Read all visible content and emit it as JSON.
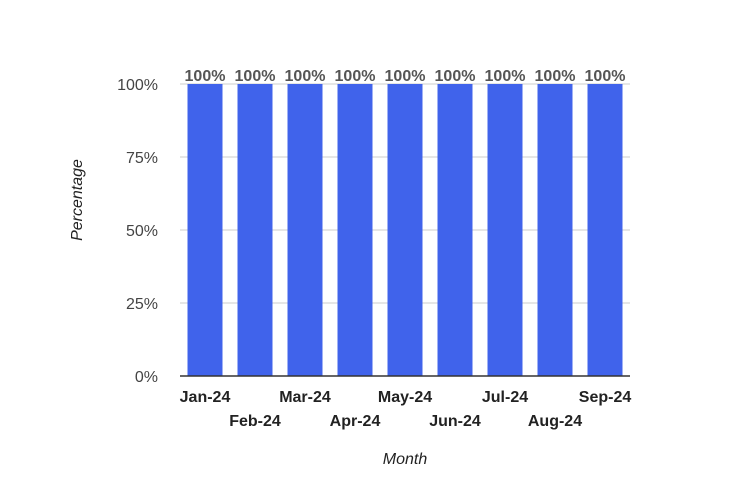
{
  "chart_data": {
    "type": "bar",
    "categories": [
      "Jan-24",
      "Feb-24",
      "Mar-24",
      "Apr-24",
      "May-24",
      "Jun-24",
      "Jul-24",
      "Aug-24",
      "Sep-24"
    ],
    "values": [
      100,
      100,
      100,
      100,
      100,
      100,
      100,
      100,
      100
    ],
    "data_labels": [
      "100%",
      "100%",
      "100%",
      "100%",
      "100%",
      "100%",
      "100%",
      "100%",
      "100%"
    ],
    "xlabel": "Month",
    "ylabel": "Percentage",
    "ylim": [
      0,
      100
    ],
    "yticks": [
      0,
      25,
      50,
      75,
      100
    ],
    "ytick_labels": [
      "0%",
      "25%",
      "50%",
      "75%",
      "100%"
    ],
    "grid": true,
    "legend": "none",
    "bar_color": "#4063EB",
    "grid_color": "#CCCCCC",
    "axis_color": "#333333"
  }
}
